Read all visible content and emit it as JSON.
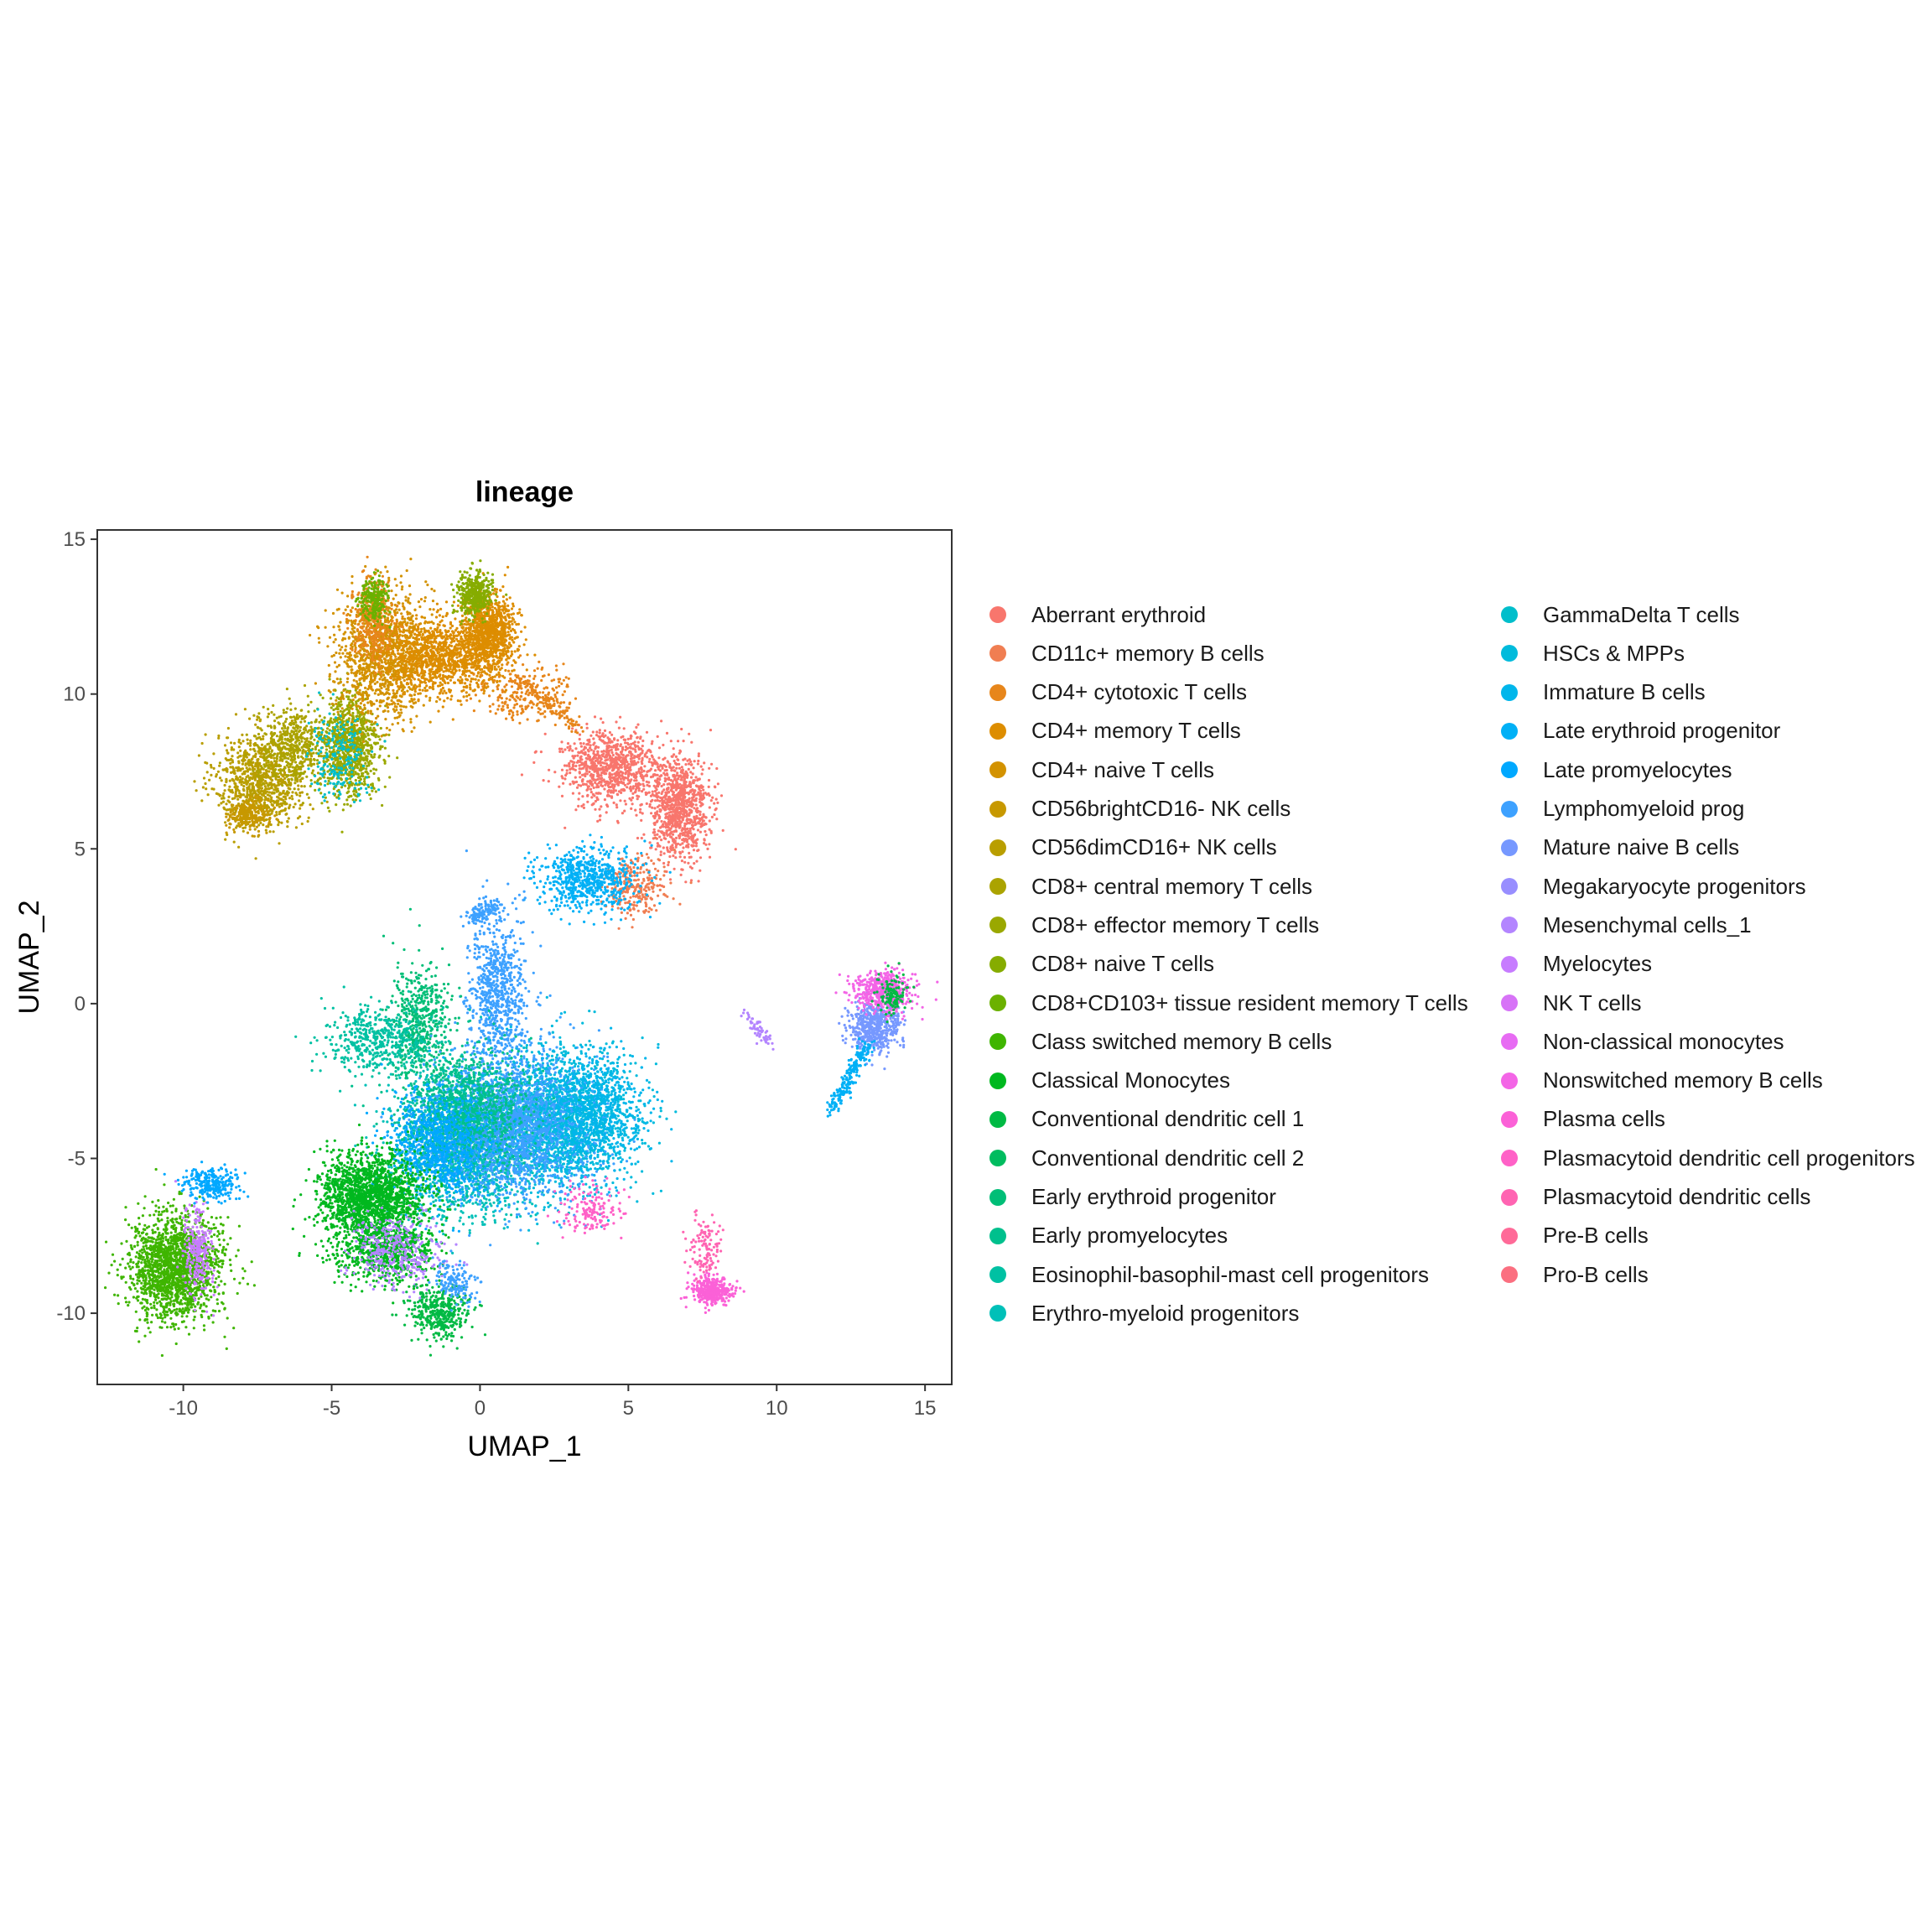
{
  "chart_data": {
    "type": "scatter",
    "title": "lineage",
    "xlabel": "UMAP_1",
    "ylabel": "UMAP_2",
    "xlim": [
      -12.9,
      15.9
    ],
    "ylim": [
      -12.3,
      15.3
    ],
    "xticks": [
      -10,
      -5,
      0,
      5,
      10,
      15
    ],
    "yticks": [
      -10,
      -5,
      0,
      5,
      10,
      15
    ],
    "xtick_labels": [
      "-10",
      "-5",
      "0",
      "5",
      "10",
      "15"
    ],
    "ytick_labels": [
      "-10",
      "-5",
      "0",
      "5",
      "10",
      "15"
    ],
    "grid": false,
    "legend_position": "right",
    "legend_columns": 2,
    "categories": [
      {
        "name": "Aberrant erythroid",
        "color": "#F8766D"
      },
      {
        "name": "CD11c+ memory B cells",
        "color": "#F07E52"
      },
      {
        "name": "CD4+ cytotoxic T cells",
        "color": "#E7861B"
      },
      {
        "name": "CD4+ memory T cells",
        "color": "#DD8D00"
      },
      {
        "name": "CD4+ naive T cells",
        "color": "#D39200"
      },
      {
        "name": "CD56brightCD16- NK cells",
        "color": "#C79800"
      },
      {
        "name": "CD56dimCD16+ NK cells",
        "color": "#B99E00"
      },
      {
        "name": "CD8+ central memory T cells",
        "color": "#ABA300"
      },
      {
        "name": "CD8+ effector memory T cells",
        "color": "#9AA800"
      },
      {
        "name": "CD8+ naive T cells",
        "color": "#86AC00"
      },
      {
        "name": "CD8+CD103+ tissue resident memory T cells",
        "color": "#6BB100"
      },
      {
        "name": "Class switched memory B cells",
        "color": "#3FB500"
      },
      {
        "name": "Classical Monocytes",
        "color": "#00B81F"
      },
      {
        "name": "Conventional dendritic cell 1",
        "color": "#00BA44"
      },
      {
        "name": "Conventional dendritic cell 2",
        "color": "#00BC5F"
      },
      {
        "name": "Early erythroid progenitor",
        "color": "#00BE77"
      },
      {
        "name": "Early promyelocytes",
        "color": "#00C08D"
      },
      {
        "name": "Eosinophil-basophil-mast cell progenitors",
        "color": "#00C1A3"
      },
      {
        "name": "Erythro-myeloid progenitors",
        "color": "#00C0B8"
      },
      {
        "name": "GammaDelta T cells",
        "color": "#00BECB"
      },
      {
        "name": "HSCs & MPPs",
        "color": "#00BBDC"
      },
      {
        "name": "Immature B cells",
        "color": "#00B6EB"
      },
      {
        "name": "Late erythroid progenitor",
        "color": "#00B0F6"
      },
      {
        "name": "Late promyelocytes",
        "color": "#00A8FF"
      },
      {
        "name": "Lymphomyeloid prog",
        "color": "#3DA1FF"
      },
      {
        "name": "Mature naive B cells",
        "color": "#7698FF"
      },
      {
        "name": "Megakaryocyte progenitors",
        "color": "#988EFF"
      },
      {
        "name": "Mesenchymal cells_1",
        "color": "#B385FF"
      },
      {
        "name": "Myelocytes",
        "color": "#C77CFF"
      },
      {
        "name": "NK T cells",
        "color": "#D773F7"
      },
      {
        "name": "Non-classical monocytes",
        "color": "#E76BF3"
      },
      {
        "name": "Nonswitched memory B cells",
        "color": "#F365E6"
      },
      {
        "name": "Plasma cells",
        "color": "#FB61D7"
      },
      {
        "name": "Plasmacytoid dendritic cell progenitors",
        "color": "#FF61C7"
      },
      {
        "name": "Plasmacytoid dendritic cells",
        "color": "#FF64B2"
      },
      {
        "name": "Pre-B cells",
        "color": "#FF6A98"
      },
      {
        "name": "Pro-B cells",
        "color": "#FB6F80"
      }
    ],
    "clusters": [
      {
        "category": "CD56dimCD16+ NK cells",
        "center": [
          -7.4,
          7.2
        ],
        "spread": [
          0.9,
          0.9
        ],
        "n": 900
      },
      {
        "category": "CD56brightCD16- NK cells",
        "center": [
          -7.8,
          6.1
        ],
        "spread": [
          0.4,
          0.3
        ],
        "n": 250
      },
      {
        "category": "CD8+ central memory T cells",
        "center": [
          -6.3,
          8.3
        ],
        "spread": [
          0.7,
          0.7
        ],
        "n": 500
      },
      {
        "category": "CD8+ effector memory T cells",
        "center": [
          -4.4,
          8.3
        ],
        "spread": [
          0.6,
          1.0
        ],
        "n": 900
      },
      {
        "category": "CD4+ naive T cells",
        "center": [
          -3.3,
          11.3
        ],
        "spread": [
          0.9,
          1.2
        ],
        "n": 1200
      },
      {
        "category": "CD4+ memory T cells",
        "center": [
          -1.3,
          11.2
        ],
        "spread": [
          1.2,
          0.7
        ],
        "n": 1200
      },
      {
        "category": "CD4+ memory T cells",
        "center": [
          0.3,
          12.0
        ],
        "spread": [
          0.5,
          0.7
        ],
        "n": 900
      },
      {
        "category": "CD4+ cytotoxic T cells",
        "center": [
          -3.6,
          12.4
        ],
        "spread": [
          0.4,
          0.8
        ],
        "n": 350
      },
      {
        "category": "CD8+ naive T cells",
        "center": [
          -0.2,
          13.2
        ],
        "spread": [
          0.35,
          0.4
        ],
        "n": 400
      },
      {
        "category": "CD8+CD103+ tissue resident memory T cells",
        "center": [
          -3.6,
          13.1
        ],
        "spread": [
          0.3,
          0.4
        ],
        "n": 200
      },
      {
        "category": "GammaDelta T cells",
        "center": [
          -4.8,
          8.0
        ],
        "spread": [
          0.6,
          0.8
        ],
        "n": 200
      },
      {
        "category": "CD4+ cytotoxic T cells",
        "center": [
          1.6,
          10.0
        ],
        "spread": [
          0.9,
          0.5
        ],
        "n": 220
      },
      {
        "category": "Aberrant erythroid",
        "center": [
          4.4,
          7.6
        ],
        "spread": [
          1.0,
          0.7
        ],
        "n": 900
      },
      {
        "category": "Aberrant erythroid",
        "center": [
          6.7,
          6.3
        ],
        "spread": [
          0.6,
          1.0
        ],
        "n": 900
      },
      {
        "category": "CD11c+ memory B cells",
        "center": [
          5.2,
          3.8
        ],
        "spread": [
          0.6,
          0.6
        ],
        "n": 260
      },
      {
        "category": "Late erythroid progenitor",
        "center": [
          3.6,
          4.0
        ],
        "spread": [
          1.0,
          0.6
        ],
        "n": 650
      },
      {
        "category": "Lymphomyeloid prog",
        "center": [
          0.6,
          0.2
        ],
        "spread": [
          0.6,
          1.6
        ],
        "n": 800
      },
      {
        "category": "Early erythroid progenitor",
        "center": [
          -2.0,
          -0.6
        ],
        "spread": [
          0.6,
          1.1
        ],
        "n": 500
      },
      {
        "category": "Eosinophil-basophil-mast cell progenitors",
        "center": [
          -3.4,
          -1.2
        ],
        "spread": [
          1.1,
          0.6
        ],
        "n": 500
      },
      {
        "category": "Erythro-myeloid progenitors",
        "center": [
          -0.6,
          -4.6
        ],
        "spread": [
          1.4,
          1.3
        ],
        "n": 1800
      },
      {
        "category": "HSCs & MPPs",
        "center": [
          2.6,
          -3.8
        ],
        "spread": [
          1.4,
          1.3
        ],
        "n": 2200
      },
      {
        "category": "Lymphomyeloid prog",
        "center": [
          1.0,
          -4.0
        ],
        "spread": [
          1.6,
          1.3
        ],
        "n": 2200
      },
      {
        "category": "Early promyelocytes",
        "center": [
          -0.4,
          -3.4
        ],
        "spread": [
          1.2,
          1.1
        ],
        "n": 1100
      },
      {
        "category": "Late promyelocytes",
        "center": [
          -1.3,
          -4.6
        ],
        "spread": [
          1.0,
          1.0
        ],
        "n": 900
      },
      {
        "category": "Immature B cells",
        "center": [
          3.8,
          -3.5
        ],
        "spread": [
          1.0,
          1.1
        ],
        "n": 700
      },
      {
        "category": "Plasmacytoid dendritic cell progenitors",
        "center": [
          3.7,
          -6.6
        ],
        "spread": [
          0.6,
          0.5
        ],
        "n": 150
      },
      {
        "category": "Classical Monocytes",
        "center": [
          -3.7,
          -6.2
        ],
        "spread": [
          1.0,
          0.8
        ],
        "n": 1800
      },
      {
        "category": "Classical Monocytes",
        "center": [
          -3.2,
          -8.0
        ],
        "spread": [
          1.0,
          0.6
        ],
        "n": 700
      },
      {
        "category": "Mesenchymal cells_1",
        "center": [
          -2.8,
          -8.0
        ],
        "spread": [
          0.9,
          0.7
        ],
        "n": 350
      },
      {
        "category": "Conventional dendritic cell 1",
        "center": [
          -1.4,
          -10.0
        ],
        "spread": [
          0.6,
          0.5
        ],
        "n": 400
      },
      {
        "category": "Lymphomyeloid prog",
        "center": [
          -0.8,
          -9.0
        ],
        "spread": [
          0.4,
          0.4
        ],
        "n": 150
      },
      {
        "category": "Class switched memory B cells",
        "center": [
          -10.3,
          -8.5
        ],
        "spread": [
          0.9,
          1.0
        ],
        "n": 1800
      },
      {
        "category": "Myelocytes",
        "center": [
          -9.5,
          -8.0
        ],
        "spread": [
          0.3,
          0.9
        ],
        "n": 250
      },
      {
        "category": "Late promyelocytes",
        "center": [
          -9.0,
          -5.8
        ],
        "spread": [
          0.6,
          0.3
        ],
        "n": 250
      },
      {
        "category": "Mature naive B cells",
        "center": [
          13.3,
          -0.7
        ],
        "spread": [
          0.5,
          0.5
        ],
        "n": 550
      },
      {
        "category": "Nonswitched memory B cells",
        "center": [
          13.6,
          0.4
        ],
        "spread": [
          0.6,
          0.4
        ],
        "n": 500
      },
      {
        "category": "Conventional dendritic cell 1",
        "center": [
          13.9,
          0.3
        ],
        "spread": [
          0.3,
          0.4
        ],
        "n": 120
      },
      {
        "category": "Plasma cells",
        "center": [
          7.8,
          -9.3
        ],
        "spread": [
          0.4,
          0.25
        ],
        "n": 400
      },
      {
        "category": "Plasmacytoid dendritic cells",
        "center": [
          7.6,
          -7.8
        ],
        "spread": [
          0.3,
          0.6
        ],
        "n": 120
      }
    ],
    "trails": [
      {
        "category": "CD4+ cytotoxic T cells",
        "from": [
          1.3,
          10.5
        ],
        "to": [
          3.3,
          8.9
        ],
        "n": 120
      },
      {
        "category": "Late erythroid progenitor",
        "from": [
          13.1,
          -1.3
        ],
        "to": [
          11.8,
          -3.5
        ],
        "n": 220
      },
      {
        "category": "Mesenchymal cells_1",
        "from": [
          9.0,
          -0.3
        ],
        "to": [
          9.8,
          -1.3
        ],
        "n": 60
      },
      {
        "category": "Lymphomyeloid prog",
        "from": [
          -0.4,
          2.7
        ],
        "to": [
          0.6,
          3.2
        ],
        "n": 120
      }
    ]
  }
}
